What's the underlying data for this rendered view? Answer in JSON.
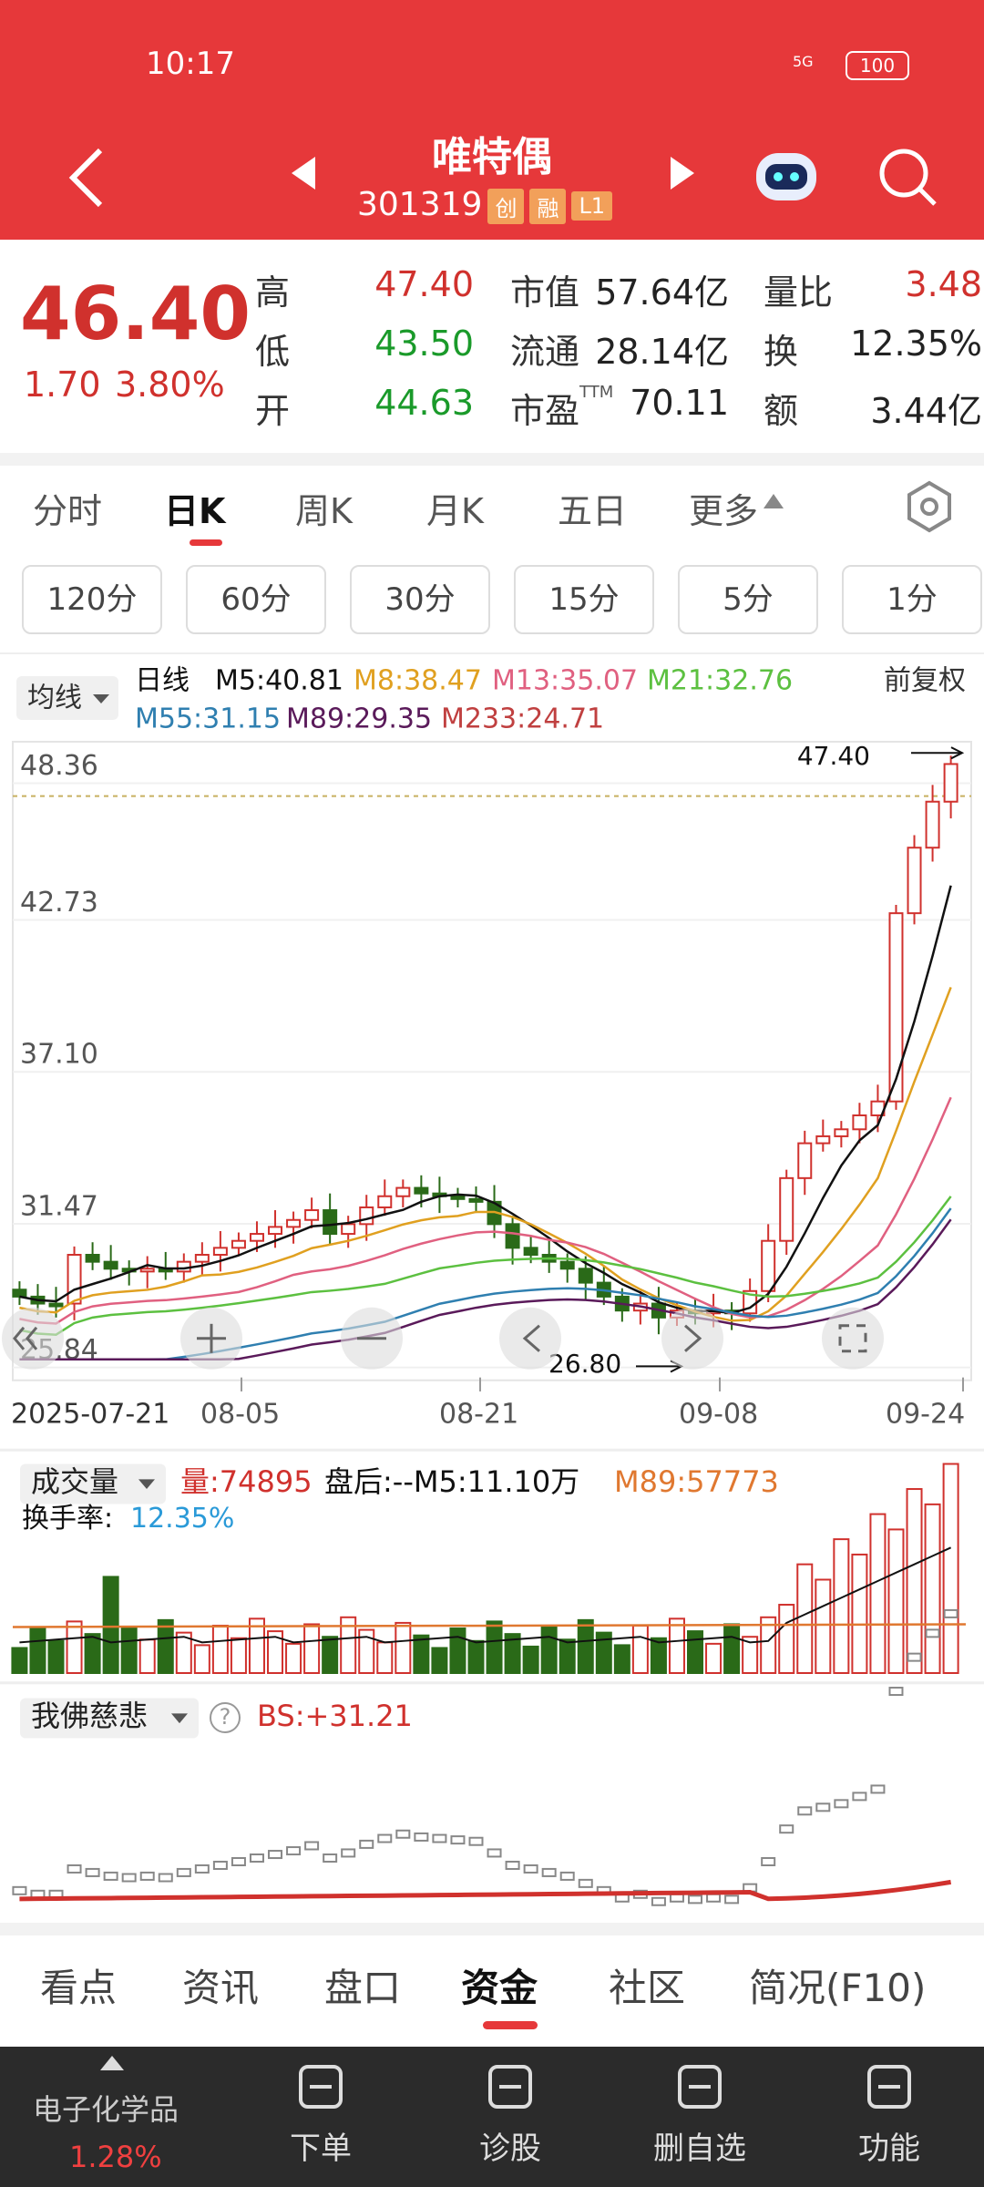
{
  "status_bar": {
    "time": "10:17",
    "network": "5G",
    "battery": "100"
  },
  "header": {
    "title": "唯特偶",
    "code": "301319",
    "badges": [
      "创",
      "融",
      "L1"
    ]
  },
  "quote": {
    "price": "46.40",
    "change": "1.70",
    "change_pct": "3.80%",
    "columns": [
      [
        {
          "label": "高",
          "value": "47.40",
          "trend": "up"
        },
        {
          "label": "低",
          "value": "43.50",
          "trend": "down"
        },
        {
          "label": "开",
          "value": "44.63",
          "trend": "down"
        }
      ],
      [
        {
          "label": "市值",
          "value": "57.64亿",
          "trend": "flat"
        },
        {
          "label": "流通",
          "value": "28.14亿",
          "trend": "flat"
        },
        {
          "label": "市盈",
          "label_sup": "TTM",
          "value": "70.11",
          "trend": "flat"
        }
      ],
      [
        {
          "label": "量比",
          "value": "3.48",
          "trend": "up"
        },
        {
          "label": "换",
          "value": "12.35%",
          "trend": "flat"
        },
        {
          "label": "额",
          "value": "3.44亿",
          "trend": "flat"
        }
      ]
    ]
  },
  "period_tabs": {
    "items": [
      "分时",
      "日K",
      "周K",
      "月K",
      "五日",
      "更多"
    ],
    "selected": 1
  },
  "interval_buttons": [
    "120分",
    "60分",
    "30分",
    "15分",
    "5分",
    "1分"
  ],
  "ma_legend": {
    "selector": "均线",
    "period": "日线",
    "adjust": "前复权",
    "items": [
      {
        "label": "M5:40.81",
        "color": "#111111"
      },
      {
        "label": "M8:38.47",
        "color": "#e0a020"
      },
      {
        "label": "M13:35.07",
        "color": "#e06080"
      },
      {
        "label": "M21:32.76",
        "color": "#5cc040"
      },
      {
        "label": "M55:31.15",
        "color": "#2f7fb0"
      },
      {
        "label": "M89:29.35",
        "color": "#5a1a5a"
      },
      {
        "label": "M233:24.71",
        "color": "#c04040"
      }
    ]
  },
  "price_axis": [
    "48.36",
    "42.73",
    "37.10",
    "31.47",
    "25.84"
  ],
  "annotations": {
    "high": "47.40",
    "low": "26.80"
  },
  "date_axis": [
    "2025-07-21",
    "08-05",
    "08-21",
    "09-08",
    "09-24"
  ],
  "volume_panel": {
    "selector": "成交量",
    "items": [
      {
        "label": "量:74895",
        "color": "#d0312d"
      },
      {
        "label": "盘后:--M5:11.10万",
        "color": "#111111"
      },
      {
        "label": "M89:57773",
        "color": "#e07830"
      }
    ],
    "turnover_label": "换手率:",
    "turnover_value": "12.35%"
  },
  "indicator_panel": {
    "selector": "我佛慈悲",
    "help": "?",
    "value": "BS:+31.21"
  },
  "bottom_tabs": {
    "items": [
      "看点",
      "资讯",
      "盘口",
      "资金",
      "社区",
      "简况(F10)"
    ],
    "selected": 3
  },
  "bottom_nav": {
    "sector": "电子化学品",
    "sector_change": "1.28%",
    "items": [
      "下单",
      "诊股",
      "删自选",
      "功能"
    ]
  }
}
